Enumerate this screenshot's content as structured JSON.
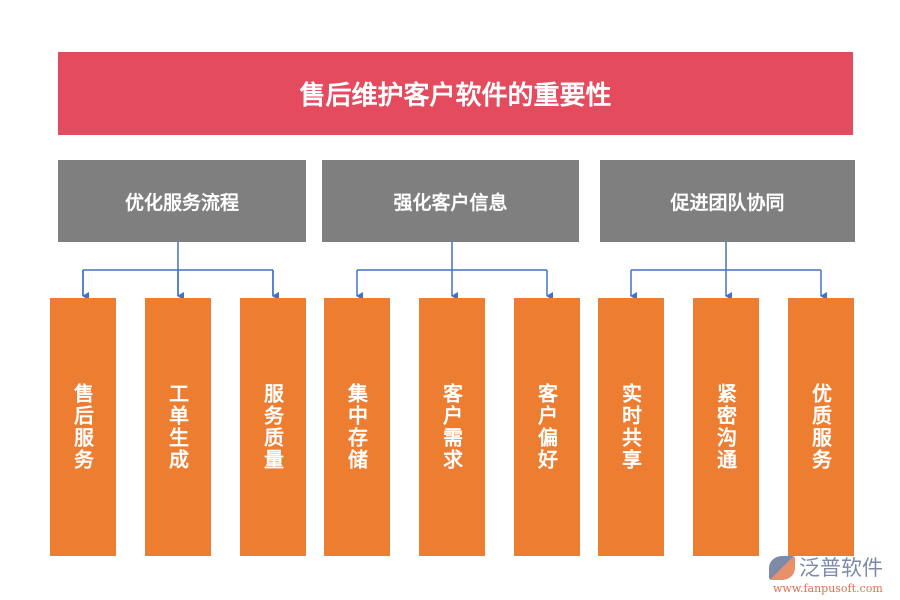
{
  "title": "售后维护客户软件的重要性",
  "categories": [
    {
      "label": "优化服务流程",
      "items": [
        "售后服务",
        "工单生成",
        "服务质量"
      ]
    },
    {
      "label": "强化客户信息",
      "items": [
        "集中存储",
        "客户需求",
        "客户偏好"
      ]
    },
    {
      "label": "促进团队协同",
      "items": [
        "实时共享",
        "紧密沟通",
        "优质服务"
      ]
    }
  ],
  "logo": {
    "name": "泛普软件",
    "url": "www.fanpusoft.com"
  },
  "colors": {
    "title": "#E44B5E",
    "category": "#7F7F7F",
    "leaf": "#ED7D31",
    "connector": "#4472C4"
  }
}
